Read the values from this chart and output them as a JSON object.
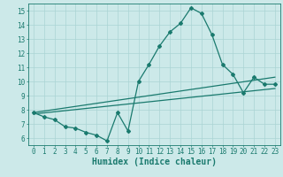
{
  "title": "",
  "xlabel": "Humidex (Indice chaleur)",
  "ylabel": "",
  "bg_color": "#cce9e9",
  "line_color": "#1a7a6e",
  "grid_color": "#aad4d4",
  "xlim": [
    -0.5,
    23.5
  ],
  "ylim": [
    5.5,
    15.5
  ],
  "xticks": [
    0,
    1,
    2,
    3,
    4,
    5,
    6,
    7,
    8,
    9,
    10,
    11,
    12,
    13,
    14,
    15,
    16,
    17,
    18,
    19,
    20,
    21,
    22,
    23
  ],
  "yticks": [
    6,
    7,
    8,
    9,
    10,
    11,
    12,
    13,
    14,
    15
  ],
  "main_x": [
    0,
    1,
    2,
    3,
    4,
    5,
    6,
    7,
    8,
    9,
    10,
    11,
    12,
    13,
    14,
    15,
    16,
    17,
    18,
    19,
    20,
    21,
    22,
    23
  ],
  "main_y": [
    7.8,
    7.5,
    7.3,
    6.8,
    6.7,
    6.4,
    6.2,
    5.8,
    7.8,
    6.5,
    10.0,
    11.2,
    12.5,
    13.5,
    14.1,
    15.2,
    14.8,
    13.3,
    11.2,
    10.5,
    9.2,
    10.3,
    9.8,
    9.8
  ],
  "trend1_x": [
    0,
    23
  ],
  "trend1_y": [
    7.7,
    9.5
  ],
  "trend2_x": [
    0,
    23
  ],
  "trend2_y": [
    7.8,
    10.3
  ],
  "marker": "D",
  "marker_size": 2.0,
  "line_width": 0.9,
  "tick_fontsize": 5.5,
  "xlabel_fontsize": 7.0
}
